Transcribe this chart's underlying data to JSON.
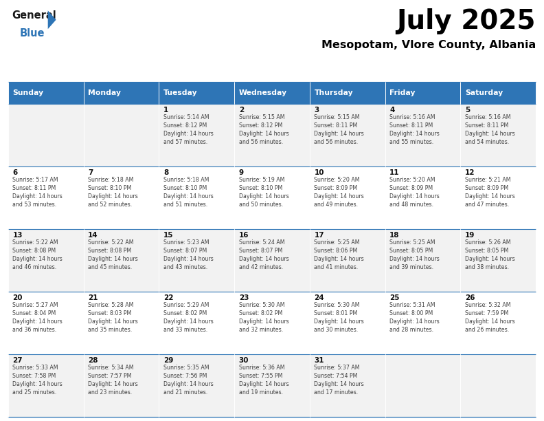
{
  "title": "July 2025",
  "subtitle": "Mesopotam, Vlore County, Albania",
  "header_bg": "#2E75B6",
  "header_text": "#FFFFFF",
  "days_of_week": [
    "Sunday",
    "Monday",
    "Tuesday",
    "Wednesday",
    "Thursday",
    "Friday",
    "Saturday"
  ],
  "row_bg_odd": "#F2F2F2",
  "row_bg_even": "#FFFFFF",
  "cell_border": "#2E75B6",
  "day_number_color": "#000000",
  "cell_text_color": "#404040",
  "calendar": [
    [
      {
        "day": null,
        "text": ""
      },
      {
        "day": null,
        "text": ""
      },
      {
        "day": 1,
        "text": "Sunrise: 5:14 AM\nSunset: 8:12 PM\nDaylight: 14 hours\nand 57 minutes."
      },
      {
        "day": 2,
        "text": "Sunrise: 5:15 AM\nSunset: 8:12 PM\nDaylight: 14 hours\nand 56 minutes."
      },
      {
        "day": 3,
        "text": "Sunrise: 5:15 AM\nSunset: 8:11 PM\nDaylight: 14 hours\nand 56 minutes."
      },
      {
        "day": 4,
        "text": "Sunrise: 5:16 AM\nSunset: 8:11 PM\nDaylight: 14 hours\nand 55 minutes."
      },
      {
        "day": 5,
        "text": "Sunrise: 5:16 AM\nSunset: 8:11 PM\nDaylight: 14 hours\nand 54 minutes."
      }
    ],
    [
      {
        "day": 6,
        "text": "Sunrise: 5:17 AM\nSunset: 8:11 PM\nDaylight: 14 hours\nand 53 minutes."
      },
      {
        "day": 7,
        "text": "Sunrise: 5:18 AM\nSunset: 8:10 PM\nDaylight: 14 hours\nand 52 minutes."
      },
      {
        "day": 8,
        "text": "Sunrise: 5:18 AM\nSunset: 8:10 PM\nDaylight: 14 hours\nand 51 minutes."
      },
      {
        "day": 9,
        "text": "Sunrise: 5:19 AM\nSunset: 8:10 PM\nDaylight: 14 hours\nand 50 minutes."
      },
      {
        "day": 10,
        "text": "Sunrise: 5:20 AM\nSunset: 8:09 PM\nDaylight: 14 hours\nand 49 minutes."
      },
      {
        "day": 11,
        "text": "Sunrise: 5:20 AM\nSunset: 8:09 PM\nDaylight: 14 hours\nand 48 minutes."
      },
      {
        "day": 12,
        "text": "Sunrise: 5:21 AM\nSunset: 8:09 PM\nDaylight: 14 hours\nand 47 minutes."
      }
    ],
    [
      {
        "day": 13,
        "text": "Sunrise: 5:22 AM\nSunset: 8:08 PM\nDaylight: 14 hours\nand 46 minutes."
      },
      {
        "day": 14,
        "text": "Sunrise: 5:22 AM\nSunset: 8:08 PM\nDaylight: 14 hours\nand 45 minutes."
      },
      {
        "day": 15,
        "text": "Sunrise: 5:23 AM\nSunset: 8:07 PM\nDaylight: 14 hours\nand 43 minutes."
      },
      {
        "day": 16,
        "text": "Sunrise: 5:24 AM\nSunset: 8:07 PM\nDaylight: 14 hours\nand 42 minutes."
      },
      {
        "day": 17,
        "text": "Sunrise: 5:25 AM\nSunset: 8:06 PM\nDaylight: 14 hours\nand 41 minutes."
      },
      {
        "day": 18,
        "text": "Sunrise: 5:25 AM\nSunset: 8:05 PM\nDaylight: 14 hours\nand 39 minutes."
      },
      {
        "day": 19,
        "text": "Sunrise: 5:26 AM\nSunset: 8:05 PM\nDaylight: 14 hours\nand 38 minutes."
      }
    ],
    [
      {
        "day": 20,
        "text": "Sunrise: 5:27 AM\nSunset: 8:04 PM\nDaylight: 14 hours\nand 36 minutes."
      },
      {
        "day": 21,
        "text": "Sunrise: 5:28 AM\nSunset: 8:03 PM\nDaylight: 14 hours\nand 35 minutes."
      },
      {
        "day": 22,
        "text": "Sunrise: 5:29 AM\nSunset: 8:02 PM\nDaylight: 14 hours\nand 33 minutes."
      },
      {
        "day": 23,
        "text": "Sunrise: 5:30 AM\nSunset: 8:02 PM\nDaylight: 14 hours\nand 32 minutes."
      },
      {
        "day": 24,
        "text": "Sunrise: 5:30 AM\nSunset: 8:01 PM\nDaylight: 14 hours\nand 30 minutes."
      },
      {
        "day": 25,
        "text": "Sunrise: 5:31 AM\nSunset: 8:00 PM\nDaylight: 14 hours\nand 28 minutes."
      },
      {
        "day": 26,
        "text": "Sunrise: 5:32 AM\nSunset: 7:59 PM\nDaylight: 14 hours\nand 26 minutes."
      }
    ],
    [
      {
        "day": 27,
        "text": "Sunrise: 5:33 AM\nSunset: 7:58 PM\nDaylight: 14 hours\nand 25 minutes."
      },
      {
        "day": 28,
        "text": "Sunrise: 5:34 AM\nSunset: 7:57 PM\nDaylight: 14 hours\nand 23 minutes."
      },
      {
        "day": 29,
        "text": "Sunrise: 5:35 AM\nSunset: 7:56 PM\nDaylight: 14 hours\nand 21 minutes."
      },
      {
        "day": 30,
        "text": "Sunrise: 5:36 AM\nSunset: 7:55 PM\nDaylight: 14 hours\nand 19 minutes."
      },
      {
        "day": 31,
        "text": "Sunrise: 5:37 AM\nSunset: 7:54 PM\nDaylight: 14 hours\nand 17 minutes."
      },
      {
        "day": null,
        "text": ""
      },
      {
        "day": null,
        "text": ""
      }
    ]
  ],
  "logo_general_color": "#1a1a1a",
  "logo_blue_color": "#2E75B6"
}
